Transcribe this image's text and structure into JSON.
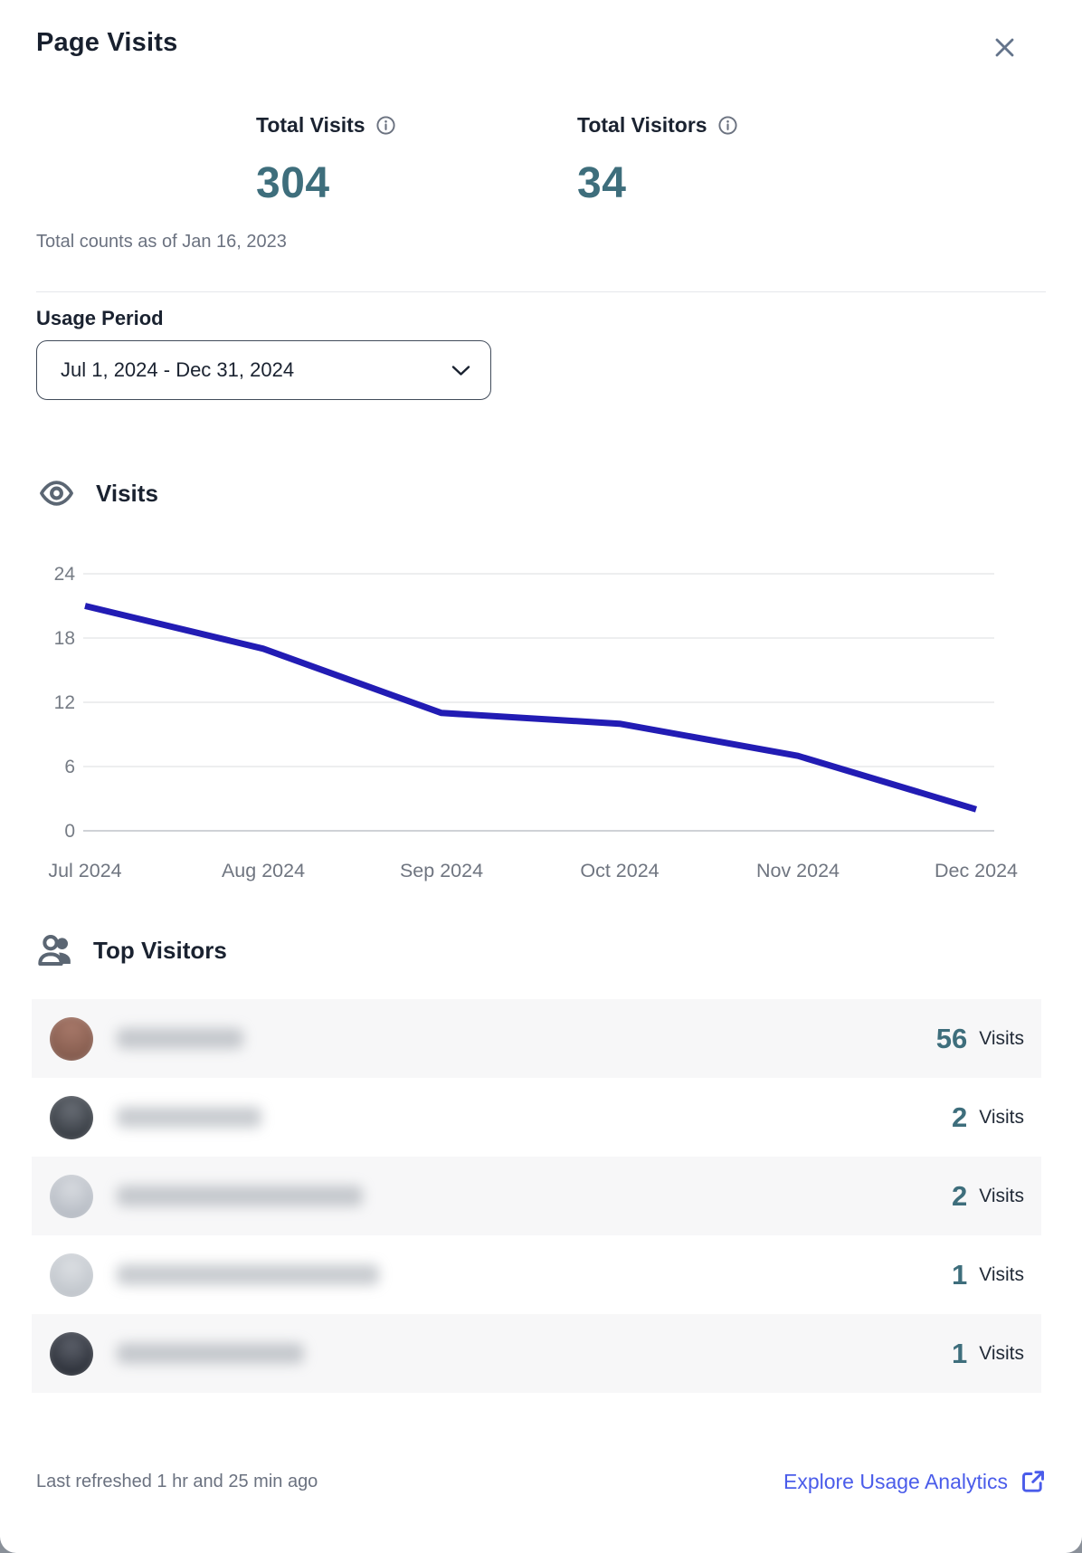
{
  "header": {
    "title": "Page Visits"
  },
  "stats": [
    {
      "label": "Total Visits",
      "value": "304"
    },
    {
      "label": "Total Visitors",
      "value": "34"
    }
  ],
  "as_of_note": "Total counts as of Jan 16, 2023",
  "usage_period": {
    "label": "Usage Period",
    "selected_value": "Jul 1, 2024 - Dec 31, 2024"
  },
  "visits_section": {
    "title": "Visits"
  },
  "chart_data": {
    "type": "line",
    "title": "Visits",
    "x": [
      "Jul 2024",
      "Aug 2024",
      "Sep 2024",
      "Oct 2024",
      "Nov 2024",
      "Dec 2024"
    ],
    "values": [
      21,
      17,
      11,
      10,
      7,
      2
    ],
    "yticks": [
      0,
      6,
      12,
      18,
      24
    ],
    "ylim": [
      0,
      24
    ],
    "grid": true,
    "legend": "none",
    "line_color": "#221cb4"
  },
  "top_visitors": {
    "title": "Top Visitors",
    "rows": [
      {
        "visits": "56",
        "unit": "Visits",
        "name_blurred": true
      },
      {
        "visits": "2",
        "unit": "Visits",
        "name_blurred": true
      },
      {
        "visits": "2",
        "unit": "Visits",
        "name_blurred": true
      },
      {
        "visits": "1",
        "unit": "Visits",
        "name_blurred": true
      },
      {
        "visits": "1",
        "unit": "Visits",
        "name_blurred": true
      }
    ]
  },
  "footer": {
    "last_refreshed": "Last refreshed 1 hr and 25 min ago",
    "link_label": "Explore Usage Analytics"
  },
  "colors": {
    "accent_teal": "#3e6e7c",
    "chart_line": "#221cb4",
    "link_blue": "#4a5cea",
    "text_dark": "#1a2230",
    "text_gray": "#6b7280",
    "row_alt_bg": "#f7f7f8"
  }
}
